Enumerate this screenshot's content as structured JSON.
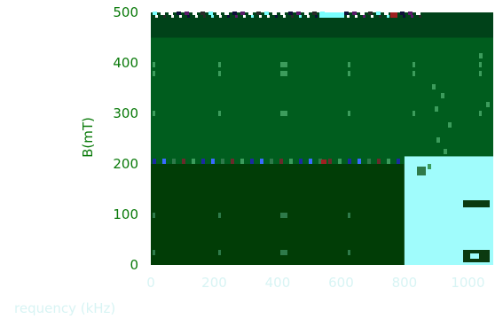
{
  "chart_data": {
    "type": "heatmap",
    "xlabel": "requency (kHz)",
    "ylabel": "B(mT)",
    "xlim": [
      0,
      1080
    ],
    "ylim": [
      0,
      500
    ],
    "x_ticks": [
      0,
      200,
      400,
      600,
      800,
      1000
    ],
    "x_tick_labels": [
      "0",
      "200",
      "400",
      "600",
      "800",
      "1000"
    ],
    "y_ticks": [
      0,
      100,
      200,
      300,
      400,
      500
    ],
    "y_tick_labels": [
      "0",
      "100",
      "200",
      "300",
      "400",
      "500"
    ],
    "regions": [
      {
        "name": "dark-green-low",
        "x": [
          0,
          800
        ],
        "y": [
          0,
          200
        ],
        "color": "#013d06"
      },
      {
        "name": "green-mid",
        "x": [
          0,
          1080
        ],
        "y": [
          200,
          450
        ],
        "color": "#005d1e"
      },
      {
        "name": "dark-green-top",
        "x": [
          0,
          1080
        ],
        "y": [
          450,
          500
        ],
        "color": "#004219"
      },
      {
        "name": "cyan-region",
        "x": [
          800,
          1080
        ],
        "y": [
          0,
          215
        ],
        "color": "#a0fcfc"
      }
    ],
    "colors": {
      "axis_text": "#0a7a0a",
      "x_axis_text": "#d8f4f4"
    }
  }
}
